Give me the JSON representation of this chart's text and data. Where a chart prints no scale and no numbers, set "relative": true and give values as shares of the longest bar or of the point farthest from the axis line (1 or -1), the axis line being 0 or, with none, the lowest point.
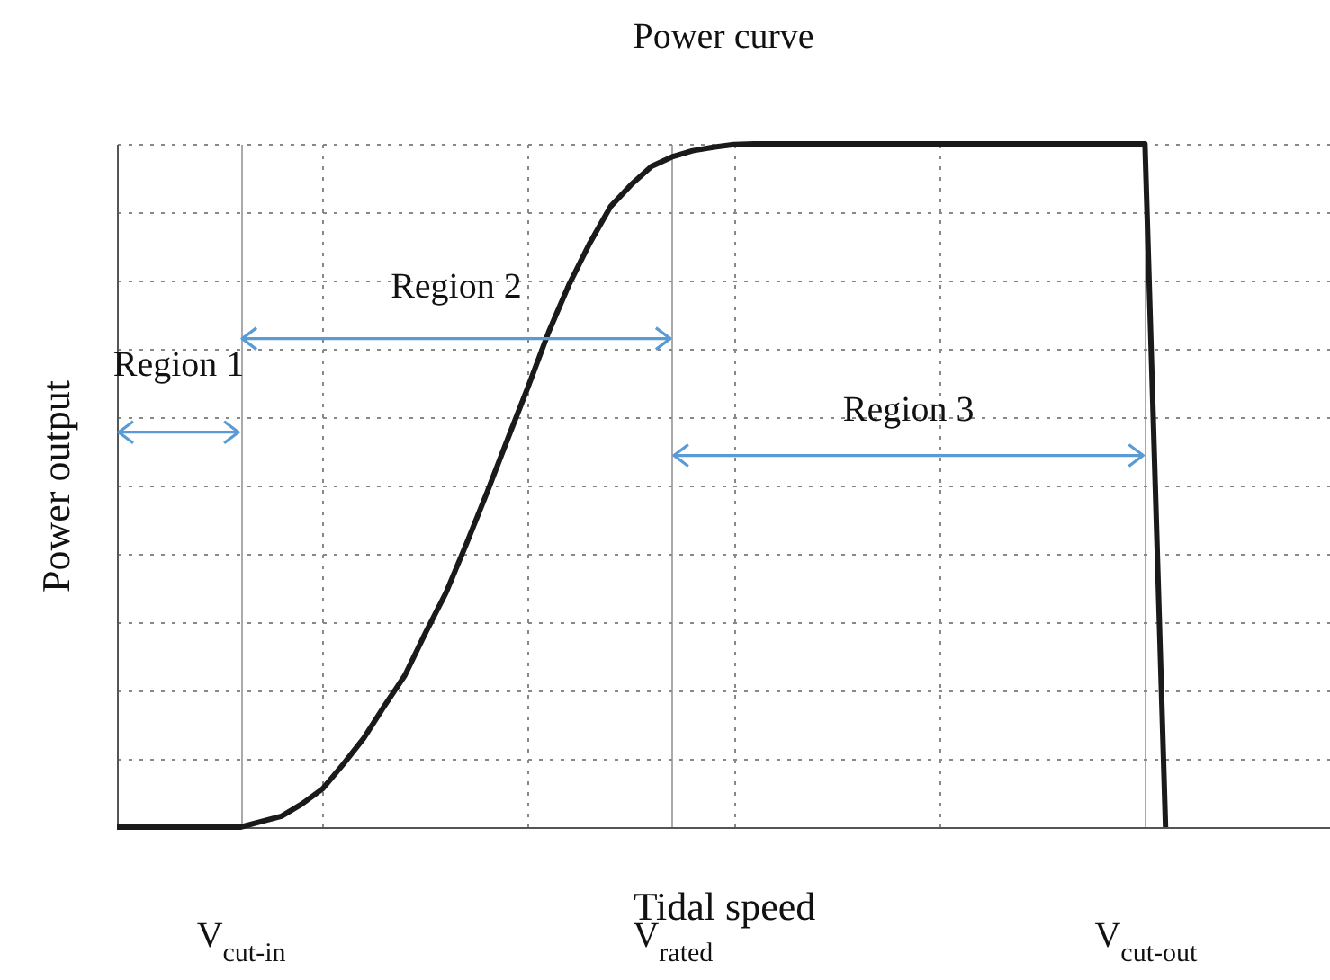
{
  "chart_data": {
    "type": "line",
    "title": "Power curve",
    "xlabel": "Tidal speed",
    "ylabel": "Power output",
    "relative": true,
    "categories": [
      null,
      null,
      null,
      null,
      null,
      null,
      "V$_{cut-in}$",
      null,
      null,
      null,
      null,
      null,
      null,
      null,
      null,
      null,
      null,
      null,
      null,
      null,
      null,
      null,
      null,
      null,
      null,
      null,
      null,
      "V$_{rated}$",
      null,
      null,
      null,
      null,
      null,
      null,
      null,
      null,
      null,
      null,
      null,
      null,
      null,
      null,
      null,
      null,
      null,
      null,
      null,
      null,
      null,
      null,
      "V$_{cut-out}$",
      null,
      null,
      null,
      null,
      null,
      null,
      null,
      null,
      null
    ],
    "series": [
      {
        "color": "#1a1a1a",
        "values": [
          0,
          0,
          0,
          0,
          0,
          0,
          0,
          0.008,
          0.016,
          0.034,
          0.056,
          0.092,
          0.13,
          0.177,
          0.222,
          0.284,
          0.343,
          0.415,
          0.49,
          0.568,
          0.645,
          0.725,
          0.795,
          0.855,
          0.908,
          0.94,
          0.967,
          0.981,
          0.99,
          0.995,
          0.999,
          1,
          1,
          1,
          1,
          1,
          1,
          1,
          1,
          1,
          1,
          1,
          1,
          1,
          1,
          1,
          1,
          1,
          1,
          1,
          1,
          0,
          null,
          null,
          null,
          null,
          null,
          null,
          null,
          null
        ]
      }
    ],
    "annotations": [
      "Region 1",
      "Region 2",
      "Region 3"
    ],
    "grid": true,
    "marker": "none",
    "line_style": "solid"
  }
}
